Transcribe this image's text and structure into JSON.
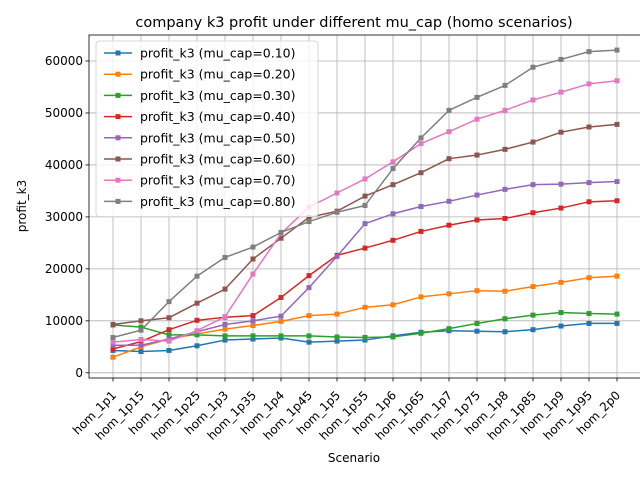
{
  "chart_data": {
    "type": "line",
    "title": "company k3 profit under different mu_cap (homo scenarios)",
    "xlabel": "Scenario",
    "ylabel": "profit_k3",
    "ylim": [
      -1000,
      65000
    ],
    "yticks": [
      0,
      10000,
      20000,
      30000,
      40000,
      50000,
      60000
    ],
    "grid": true,
    "legend_position": "upper-left",
    "categories": [
      "hom_1p1",
      "hom_1p15",
      "hom_1p2",
      "hom_1p25",
      "hom_1p3",
      "hom_1p35",
      "hom_1p4",
      "hom_1p45",
      "hom_1p5",
      "hom_1p55",
      "hom_1p6",
      "hom_1p65",
      "hom_1p7",
      "hom_1p75",
      "hom_1p8",
      "hom_1p85",
      "hom_1p9",
      "hom_1p95",
      "hom_2p0"
    ],
    "series": [
      {
        "name": "profit_k3 (mu_cap=0.10)",
        "color": "#1f77b4",
        "values": [
          4300,
          4100,
          4300,
          5200,
          6300,
          6500,
          6700,
          5900,
          6100,
          6300,
          7100,
          7800,
          8100,
          8000,
          7900,
          8300,
          9000,
          9500,
          9500
        ]
      },
      {
        "name": "profit_k3 (mu_cap=0.20)",
        "color": "#ff7f0e",
        "values": [
          3000,
          5000,
          6500,
          7500,
          8400,
          9100,
          9900,
          11000,
          11300,
          12600,
          13100,
          14600,
          15200,
          15800,
          15700,
          16600,
          17400,
          18300,
          18600
        ]
      },
      {
        "name": "profit_k3 (mu_cap=0.30)",
        "color": "#2ca02c",
        "values": [
          9200,
          8800,
          7300,
          7300,
          7100,
          7100,
          7100,
          7100,
          6900,
          6800,
          6900,
          7600,
          8500,
          9500,
          10400,
          11100,
          11600,
          11400,
          11300
        ]
      },
      {
        "name": "profit_k3 (mu_cap=0.40)",
        "color": "#d62728",
        "values": [
          4600,
          6000,
          8300,
          10100,
          10700,
          11000,
          14500,
          18700,
          22600,
          24000,
          25500,
          27200,
          28400,
          29400,
          29700,
          30800,
          31700,
          32900,
          33100
        ]
      },
      {
        "name": "profit_k3 (mu_cap=0.50)",
        "color": "#9467bd",
        "values": [
          5300,
          5300,
          6500,
          7900,
          9300,
          10000,
          10900,
          16400,
          22400,
          28700,
          30600,
          32000,
          33000,
          34200,
          35300,
          36200,
          36300,
          36600,
          36800
        ]
      },
      {
        "name": "profit_k3 (mu_cap=0.60)",
        "color": "#8c564b",
        "values": [
          9300,
          10000,
          10600,
          13400,
          16100,
          21900,
          25900,
          29900,
          31100,
          34000,
          36200,
          38500,
          41200,
          41900,
          43000,
          44400,
          46300,
          47300,
          47800
        ]
      },
      {
        "name": "profit_k3 (mu_cap=0.70)",
        "color": "#e377c2",
        "values": [
          5900,
          6400,
          6100,
          8100,
          10800,
          19000,
          26800,
          31900,
          34600,
          37300,
          40600,
          44100,
          46400,
          48800,
          50500,
          52500,
          54000,
          55600,
          56200
        ]
      },
      {
        "name": "profit_k3 (mu_cap=0.80)",
        "color": "#7f7f7f",
        "values": [
          6800,
          8200,
          13700,
          18600,
          22200,
          24200,
          27000,
          29100,
          30900,
          32200,
          39300,
          45200,
          50500,
          53000,
          55300,
          58800,
          60300,
          61800,
          62100
        ]
      }
    ]
  }
}
